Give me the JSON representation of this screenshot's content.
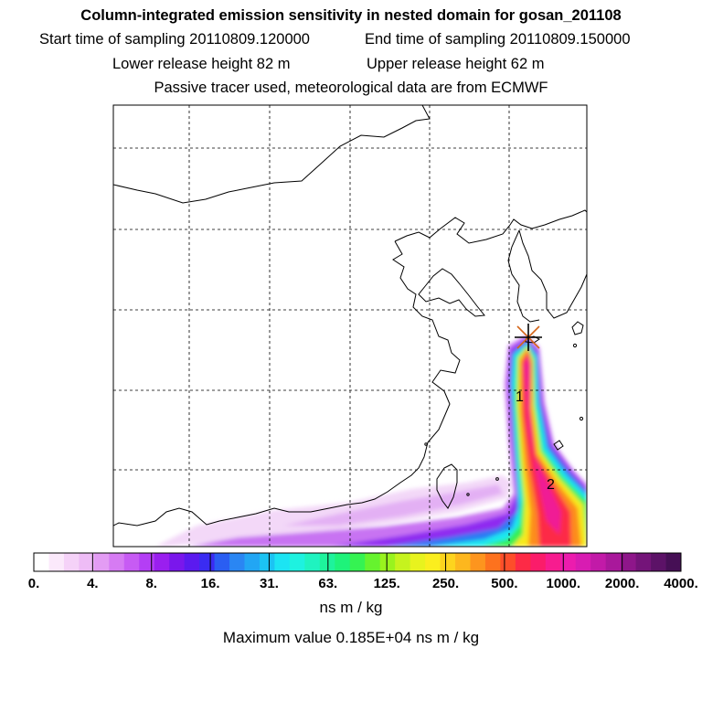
{
  "header": {
    "title": "Column-integrated emission sensitivity in nested domain for gosan_201108",
    "start_label": "Start time of sampling 20110809.120000",
    "end_label": "End time of sampling 20110809.150000",
    "lower_label": "Lower release height   82 m",
    "upper_label": "Upper release height   62 m",
    "tracer_note": "Passive tracer used, meteorological data are from ECMWF"
  },
  "chart_data": {
    "type": "heatmap",
    "title": "Column-integrated emission sensitivity in nested domain for gosan_201108",
    "colorbar": {
      "tick_labels": [
        "0.",
        "4.",
        "8.",
        "16.",
        "31.",
        "63.",
        "125.",
        "250.",
        "500.",
        "1000.",
        "2000.",
        "4000."
      ],
      "tick_values": [
        0,
        4,
        8,
        16,
        31,
        63,
        125,
        250,
        500,
        1000,
        2000,
        4000
      ],
      "colors": [
        "#ffffff",
        "#fbe9fb",
        "#f5d2f8",
        "#eebcf6",
        "#e39cf4",
        "#d67bf3",
        "#c75bf4",
        "#b43ef5",
        "#9a1fef",
        "#7a17ec",
        "#5b1aef",
        "#3a2cf2",
        "#2a5ef2",
        "#2a86f3",
        "#22a6f4",
        "#1cc3f3",
        "#1ce4f3",
        "#1ef2e0",
        "#1ff3c0",
        "#1ef39c",
        "#1ef37a",
        "#35f352",
        "#66f32e",
        "#99f31e",
        "#c6f31e",
        "#e8f31e",
        "#fbee1e",
        "#fdd41e",
        "#fdb71e",
        "#fd951e",
        "#fd721e",
        "#fd4e2a",
        "#fd2a46",
        "#fb1c6a",
        "#f71c8f",
        "#ec1cae",
        "#d81cb2",
        "#c21aa8",
        "#a9189b",
        "#8e168a",
        "#741479",
        "#5c1267",
        "#460f55"
      ],
      "unit_label": "ns m / kg"
    },
    "max_value_label": "Maximum value  0.185E+04 ns m / kg",
    "max_value": 1850,
    "release_marker": "star",
    "annotations": [
      "1",
      "2"
    ]
  }
}
